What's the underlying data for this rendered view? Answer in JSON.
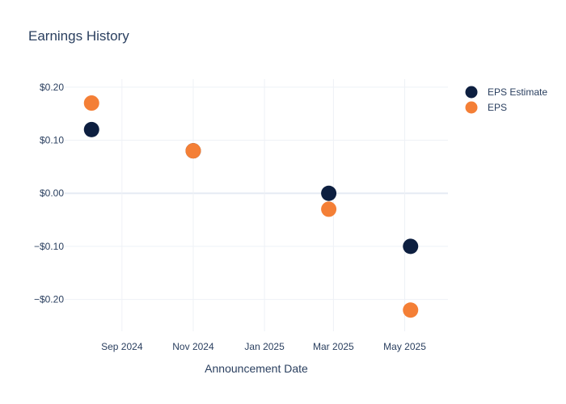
{
  "chart_data": {
    "type": "scatter",
    "title": "Earnings History",
    "xlabel": "Announcement Date",
    "ylabel": "",
    "x_ticks": [
      {
        "date": "2024-09-01",
        "label": "Sep 2024"
      },
      {
        "date": "2024-11-01",
        "label": "Nov 2024"
      },
      {
        "date": "2025-01-01",
        "label": "Jan 2025"
      },
      {
        "date": "2025-03-01",
        "label": "Mar 2025"
      },
      {
        "date": "2025-05-01",
        "label": "May 2025"
      }
    ],
    "y_ticks": [
      {
        "value": 0.2,
        "label": "$0.20"
      },
      {
        "value": 0.1,
        "label": "$0.10"
      },
      {
        "value": 0.0,
        "label": "$0.00"
      },
      {
        "value": -0.1,
        "label": "−$0.10"
      },
      {
        "value": -0.2,
        "label": "−$0.20"
      }
    ],
    "xlim": [
      "2024-07-14",
      "2025-06-07"
    ],
    "ylim": [
      -0.26,
      0.215
    ],
    "grid": true,
    "legend_position": "top-right",
    "series": [
      {
        "name": "EPS Estimate",
        "color": "#0d1f40",
        "points": [
          {
            "date": "2024-08-06",
            "value": 0.12
          },
          {
            "date": "2024-11-01",
            "value": 0.08
          },
          {
            "date": "2025-02-25",
            "value": 0.0
          },
          {
            "date": "2025-05-06",
            "value": -0.1
          }
        ]
      },
      {
        "name": "EPS",
        "color": "#f47f36",
        "points": [
          {
            "date": "2024-08-06",
            "value": 0.17
          },
          {
            "date": "2024-11-01",
            "value": 0.08
          },
          {
            "date": "2025-02-25",
            "value": -0.03
          },
          {
            "date": "2025-05-06",
            "value": -0.22
          }
        ]
      }
    ]
  }
}
